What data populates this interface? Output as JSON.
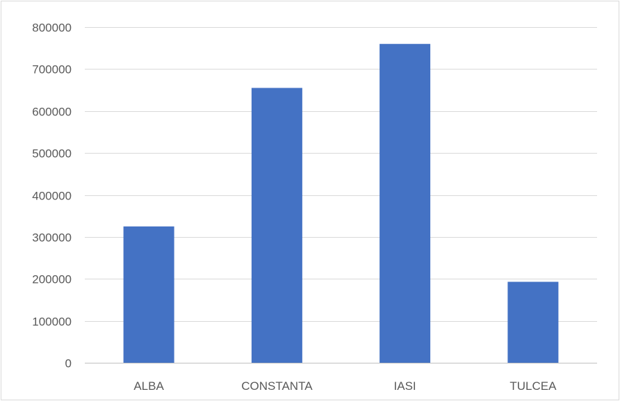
{
  "chart_data": {
    "type": "bar",
    "title": "",
    "xlabel": "",
    "ylabel": "",
    "categories": [
      "ALBA",
      "CONSTANTA",
      "IASI",
      "TULCEA"
    ],
    "values": [
      325000,
      655000,
      760000,
      193000
    ],
    "ylim": [
      0,
      800000
    ],
    "yticks": [
      0,
      100000,
      200000,
      300000,
      400000,
      500000,
      600000,
      700000,
      800000
    ],
    "ytick_labels": [
      "0",
      "100000",
      "200000",
      "300000",
      "400000",
      "500000",
      "600000",
      "700000",
      "800000"
    ],
    "grid": true,
    "legend": "none",
    "bar_color": "#4472c4"
  }
}
